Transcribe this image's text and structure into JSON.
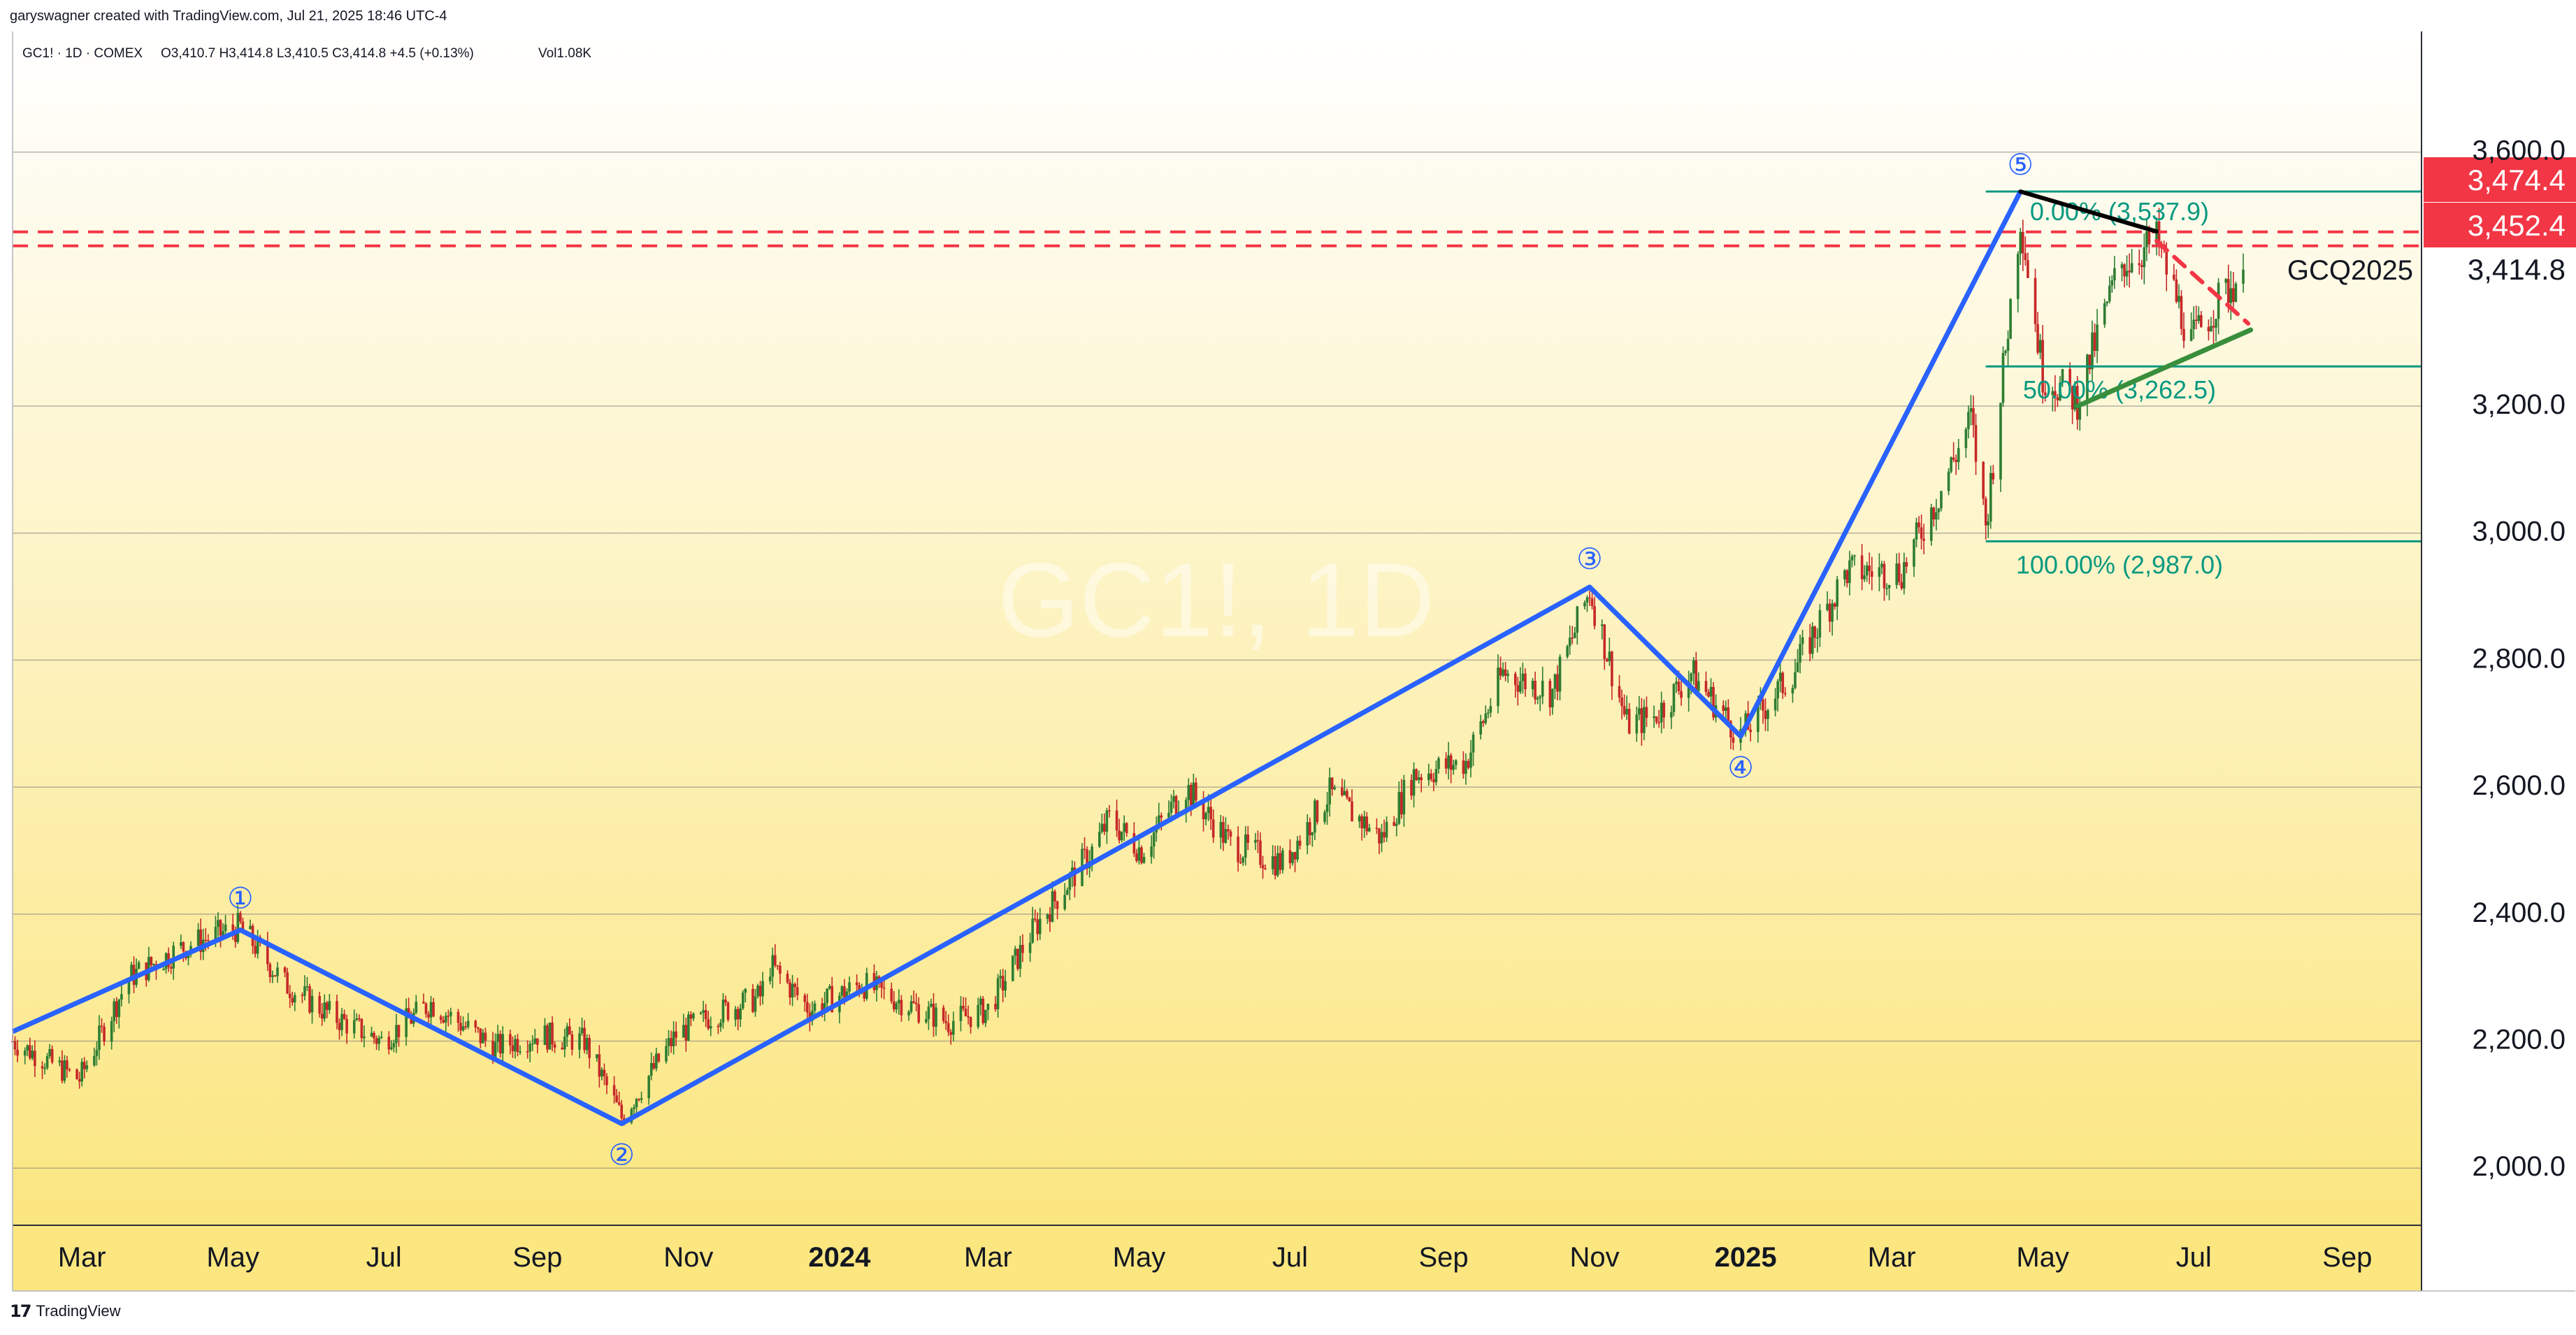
{
  "header": {
    "attribution": "garyswagner created with TradingView.com, Jul 21, 2025 18:46 UTC-4",
    "symbol_info": "GC1! · 1D · COMEX",
    "ohlc": "O3,410.7  H3,414.8  L3,410.5  C3,414.8  +4.5 (+0.13%)",
    "volume": "Vol1.08K"
  },
  "watermark": "GC1!, 1D",
  "footer": {
    "brand": "TradingView",
    "logo_glyph": "17"
  },
  "colors": {
    "bg_top": "#ffffff",
    "bg_bottom": "#fbe680",
    "candle_up": "#2e7d32",
    "candle_down": "#c62828",
    "wave": "#2962ff",
    "fib": "#089981",
    "resistance": "#f23645",
    "trend_upper": "#000000",
    "trend_lower": "#388e3c",
    "grid": "#7a7a7a"
  },
  "chart_data": {
    "type": "candlestick",
    "symbol": "GC1!",
    "interval": "1D",
    "exchange": "COMEX",
    "contract_label": "GCQ2025",
    "last_price": "3,414.8",
    "ylim": [
      1910,
      3790
    ],
    "x_date_range": [
      "2023-02-01",
      "2025-10-01"
    ],
    "y_ticks": [
      "2,000.0",
      "2,200.0",
      "2,400.0",
      "2,600.0",
      "2,800.0",
      "3,000.0",
      "3,200.0",
      "3,600.0"
    ],
    "y_tick_values": [
      2000,
      2200,
      2400,
      2600,
      2800,
      3000,
      3200,
      3600
    ],
    "x_ticks": [
      {
        "label": "Mar",
        "date": "2023-03-01",
        "bold": false
      },
      {
        "label": "May",
        "date": "2023-05-01",
        "bold": false
      },
      {
        "label": "Jul",
        "date": "2023-07-01",
        "bold": false
      },
      {
        "label": "Sep",
        "date": "2023-09-01",
        "bold": false
      },
      {
        "label": "Nov",
        "date": "2023-11-01",
        "bold": false
      },
      {
        "label": "2024",
        "date": "2024-01-01",
        "bold": true
      },
      {
        "label": "Mar",
        "date": "2024-03-01",
        "bold": false
      },
      {
        "label": "May",
        "date": "2024-05-01",
        "bold": false
      },
      {
        "label": "Jul",
        "date": "2024-07-01",
        "bold": false
      },
      {
        "label": "Sep",
        "date": "2024-09-01",
        "bold": false
      },
      {
        "label": "Nov",
        "date": "2024-11-01",
        "bold": false
      },
      {
        "label": "2025",
        "date": "2025-01-01",
        "bold": true
      },
      {
        "label": "Mar",
        "date": "2025-03-01",
        "bold": false
      },
      {
        "label": "May",
        "date": "2025-05-01",
        "bold": false
      },
      {
        "label": "Jul",
        "date": "2025-07-01",
        "bold": false
      },
      {
        "label": "Sep",
        "date": "2025-09-01",
        "bold": false
      }
    ],
    "price_path": [
      [
        "2023-02-01",
        2200
      ],
      [
        "2023-02-28",
        2140
      ],
      [
        "2023-03-10",
        2220
      ],
      [
        "2023-03-20",
        2300
      ],
      [
        "2023-04-12",
        2350
      ],
      [
        "2023-05-04",
        2380
      ],
      [
        "2023-05-22",
        2290
      ],
      [
        "2023-06-10",
        2240
      ],
      [
        "2023-06-30",
        2200
      ],
      [
        "2023-07-20",
        2260
      ],
      [
        "2023-08-15",
        2190
      ],
      [
        "2023-09-01",
        2210
      ],
      [
        "2023-09-20",
        2200
      ],
      [
        "2023-10-05",
        2080
      ],
      [
        "2023-10-27",
        2210
      ],
      [
        "2023-11-10",
        2240
      ],
      [
        "2023-11-30",
        2270
      ],
      [
        "2023-12-04",
        2320
      ],
      [
        "2023-12-20",
        2250
      ],
      [
        "2024-01-10",
        2290
      ],
      [
        "2024-02-14",
        2230
      ],
      [
        "2024-03-01",
        2250
      ],
      [
        "2024-03-20",
        2380
      ],
      [
        "2024-04-12",
        2500
      ],
      [
        "2024-04-19",
        2550
      ],
      [
        "2024-05-02",
        2500
      ],
      [
        "2024-05-20",
        2600
      ],
      [
        "2024-06-07",
        2510
      ],
      [
        "2024-06-28",
        2480
      ],
      [
        "2024-07-17",
        2590
      ],
      [
        "2024-08-07",
        2520
      ],
      [
        "2024-08-20",
        2620
      ],
      [
        "2024-09-10",
        2640
      ],
      [
        "2024-09-25",
        2780
      ],
      [
        "2024-10-15",
        2750
      ],
      [
        "2024-10-30",
        2910
      ],
      [
        "2024-11-14",
        2700
      ],
      [
        "2024-11-25",
        2710
      ],
      [
        "2024-12-10",
        2780
      ],
      [
        "2024-12-30",
        2680
      ],
      [
        "2025-01-20",
        2780
      ],
      [
        "2025-02-11",
        2940
      ],
      [
        "2025-03-05",
        2940
      ],
      [
        "2025-03-20",
        3060
      ],
      [
        "2025-04-02",
        3180
      ],
      [
        "2025-04-08",
        3010
      ],
      [
        "2025-04-22",
        3500
      ],
      [
        "2025-05-01",
        3250
      ],
      [
        "2025-05-15",
        3210
      ],
      [
        "2025-06-01",
        3420
      ],
      [
        "2025-06-16",
        3460
      ],
      [
        "2025-06-30",
        3300
      ],
      [
        "2025-07-10",
        3360
      ],
      [
        "2025-07-21",
        3414.8
      ]
    ],
    "elliott_waves": {
      "points": [
        {
          "label": "",
          "date": "2023-02-01",
          "price": 2215
        },
        {
          "label": "1",
          "date": "2023-05-04",
          "price": 2375
        },
        {
          "label": "2",
          "date": "2023-10-05",
          "price": 2070
        },
        {
          "label": "3",
          "date": "2024-10-30",
          "price": 2915
        },
        {
          "label": "4",
          "date": "2024-12-30",
          "price": 2680
        },
        {
          "label": "5",
          "date": "2025-04-22",
          "price": 3537.9
        }
      ],
      "circled_labels": [
        "①",
        "②",
        "③",
        "④",
        "⑤"
      ]
    },
    "fib_retracement": [
      {
        "label": "0.00% (3,537.9)",
        "level": 3537.9
      },
      {
        "label": "50.00% (3,262.5)",
        "level": 3262.5
      },
      {
        "label": "100.00% (2,987.0)",
        "level": 2987.0
      }
    ],
    "resistance_levels": [
      {
        "label": "3,474.4",
        "price": 3474.4
      },
      {
        "label": "3,452.4",
        "price": 3452.4
      }
    ],
    "trendlines": [
      {
        "name": "upper",
        "from": [
          "2025-04-22",
          3537.9
        ],
        "to": [
          "2025-06-16",
          3475
        ]
      },
      {
        "name": "lower",
        "from": [
          "2025-05-15",
          3200
        ],
        "to": [
          "2025-07-24",
          3320
        ]
      },
      {
        "name": "breakout",
        "from": [
          "2025-06-16",
          3460
        ],
        "to": [
          "2025-07-23",
          3330
        ]
      }
    ]
  }
}
